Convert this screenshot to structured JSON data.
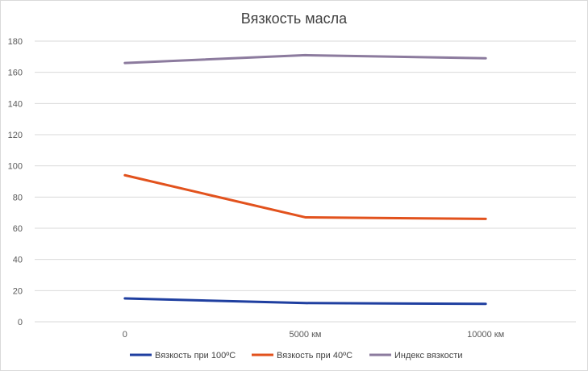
{
  "chart_data": {
    "type": "line",
    "title": "Вязкость масла",
    "categories": [
      "0",
      "5000 км",
      "10000 км"
    ],
    "ylim": [
      0,
      180
    ],
    "yticks": [
      0,
      20,
      40,
      60,
      80,
      100,
      120,
      140,
      160,
      180
    ],
    "grid": true,
    "legend": "bottom",
    "series": [
      {
        "name": "Вязкость при 100ºС",
        "values": [
          15,
          12,
          11.5
        ],
        "color": "#1f3fa0"
      },
      {
        "name": "Вязкость при 40ºС",
        "values": [
          94,
          67,
          66
        ],
        "color": "#e2521d"
      },
      {
        "name": "Индекс вязкости",
        "values": [
          166,
          171,
          169
        ],
        "color": "#8c7b9e"
      }
    ]
  }
}
